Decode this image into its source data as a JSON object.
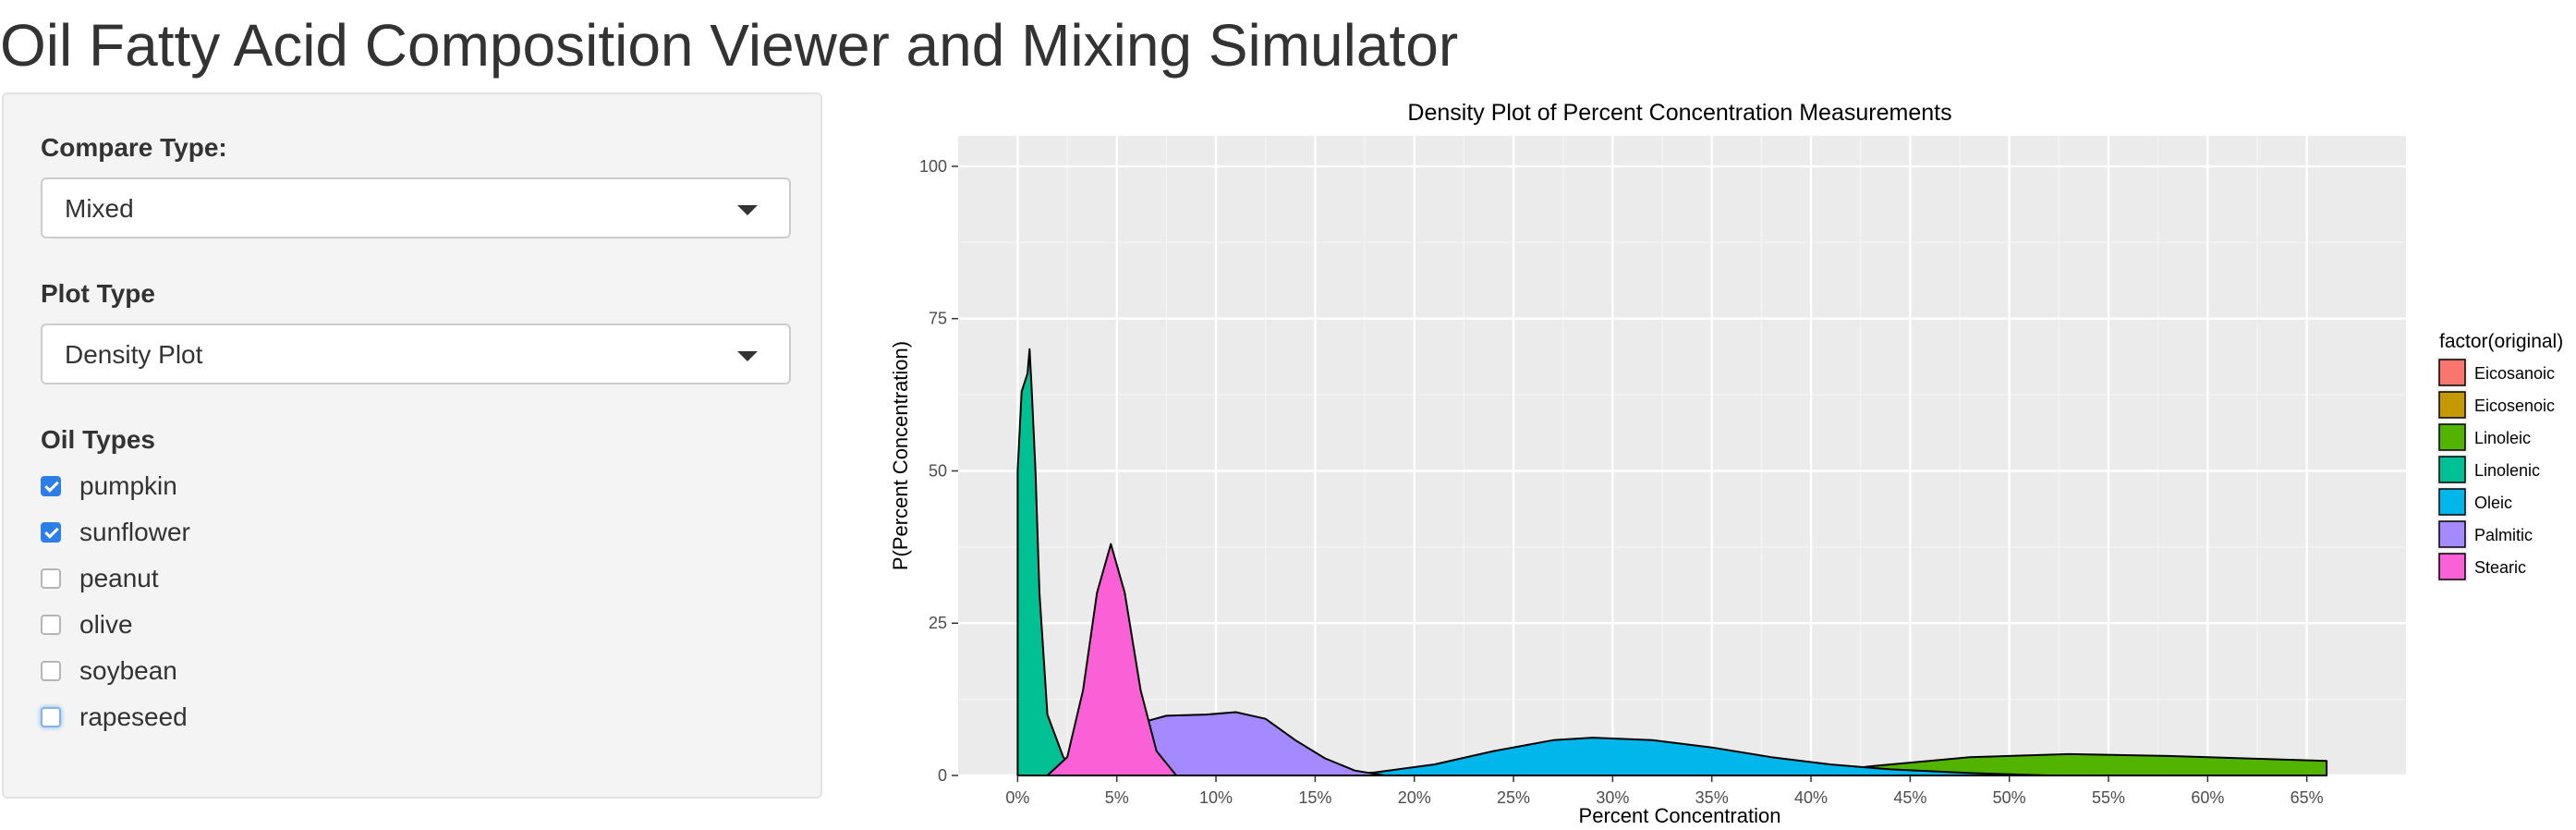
{
  "app": {
    "title": "Oil Fatty Acid Composition Viewer and Mixing Simulator"
  },
  "sidebar": {
    "compare_type": {
      "label": "Compare Type:",
      "value": "Mixed"
    },
    "plot_type": {
      "label": "Plot Type",
      "value": "Density Plot"
    },
    "oil_types": {
      "label": "Oil Types",
      "items": [
        {
          "label": "pumpkin",
          "checked": true
        },
        {
          "label": "sunflower",
          "checked": true
        },
        {
          "label": "peanut",
          "checked": false
        },
        {
          "label": "olive",
          "checked": false
        },
        {
          "label": "soybean",
          "checked": false
        },
        {
          "label": "rapeseed",
          "checked": false,
          "focused": true
        }
      ]
    }
  },
  "colors": {
    "accent": "#2e7ee8",
    "panel_bg": "#f4f4f4",
    "plot_bg": "#ebebeb"
  },
  "chart_data": {
    "type": "area",
    "title": "Density Plot of Percent Concentration Measurements",
    "xlabel": "Percent Concentration",
    "ylabel": "P(Percent Concentration)",
    "xlim": [
      -3,
      70
    ],
    "ylim": [
      0,
      105
    ],
    "x_ticks": [
      0,
      5,
      10,
      15,
      20,
      25,
      30,
      35,
      40,
      45,
      50,
      55,
      60,
      65
    ],
    "x_tick_labels": [
      "0%",
      "5%",
      "10%",
      "15%",
      "20%",
      "25%",
      "30%",
      "35%",
      "40%",
      "45%",
      "50%",
      "55%",
      "60%",
      "65%"
    ],
    "y_ticks": [
      0,
      25,
      50,
      75,
      100
    ],
    "y_tick_labels": [
      "0",
      "25",
      "50",
      "75",
      "100"
    ],
    "grid": true,
    "legend": {
      "title": "factor(original)",
      "position": "right"
    },
    "series": [
      {
        "name": "Eicosanoic",
        "color": "#f8766d",
        "points": []
      },
      {
        "name": "Eicosenoic",
        "color": "#c49a00",
        "points": []
      },
      {
        "name": "Linoleic",
        "color": "#53b400",
        "points": [
          [
            39,
            0
          ],
          [
            43,
            1.5
          ],
          [
            48,
            3
          ],
          [
            53,
            3.5
          ],
          [
            58,
            3.2
          ],
          [
            63,
            2.7
          ],
          [
            66,
            2.4
          ],
          [
            66,
            0
          ]
        ]
      },
      {
        "name": "Linolenic",
        "color": "#00c094",
        "points": [
          [
            0,
            0
          ],
          [
            0,
            50
          ],
          [
            0.2,
            63
          ],
          [
            0.5,
            66
          ],
          [
            0.6,
            70
          ],
          [
            0.7,
            64
          ],
          [
            0.9,
            50
          ],
          [
            1.1,
            30
          ],
          [
            1.5,
            10
          ],
          [
            2.3,
            3
          ],
          [
            3,
            1
          ],
          [
            4,
            0
          ]
        ]
      },
      {
        "name": "Oleic",
        "color": "#00b6eb",
        "points": [
          [
            15,
            0
          ],
          [
            18,
            0.5
          ],
          [
            21,
            1.8
          ],
          [
            24,
            4
          ],
          [
            27,
            5.8
          ],
          [
            29,
            6.2
          ],
          [
            32,
            5.8
          ],
          [
            35,
            4.6
          ],
          [
            38,
            3
          ],
          [
            41,
            1.8
          ],
          [
            44,
            1
          ],
          [
            48,
            0.4
          ],
          [
            52,
            0
          ]
        ]
      },
      {
        "name": "Palmitic",
        "color": "#a58aff",
        "points": [
          [
            5,
            0
          ],
          [
            6,
            5
          ],
          [
            6.6,
            9
          ],
          [
            7.5,
            9.8
          ],
          [
            9.5,
            10
          ],
          [
            11,
            10.4
          ],
          [
            12.5,
            9.3
          ],
          [
            14,
            5.8
          ],
          [
            15.5,
            2.8
          ],
          [
            17,
            0.8
          ],
          [
            18.5,
            0
          ]
        ]
      },
      {
        "name": "Stearic",
        "color": "#fb61d7",
        "points": [
          [
            1.5,
            0
          ],
          [
            2.5,
            3
          ],
          [
            3.3,
            14
          ],
          [
            4,
            30
          ],
          [
            4.7,
            38
          ],
          [
            5.4,
            30
          ],
          [
            6.2,
            14
          ],
          [
            7,
            4
          ],
          [
            8,
            0
          ]
        ]
      }
    ]
  }
}
